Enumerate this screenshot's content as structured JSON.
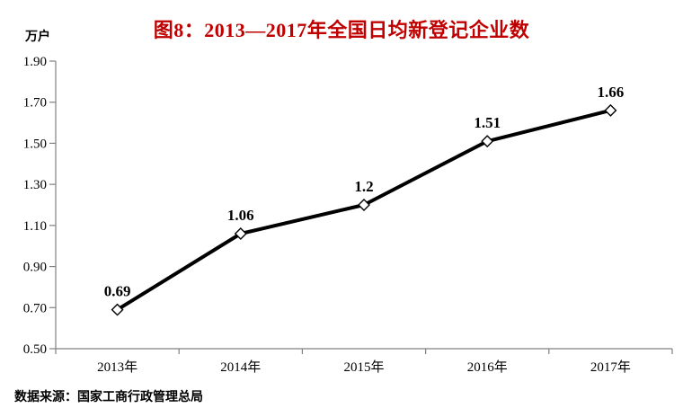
{
  "chart_data": {
    "type": "line",
    "title": "图8：2013—2017年全国日均新登记企业数",
    "title_color": "#c00000",
    "unit_label": "万户",
    "categories": [
      "2013年",
      "2014年",
      "2015年",
      "2016年",
      "2017年"
    ],
    "values": [
      0.69,
      1.06,
      1.2,
      1.51,
      1.66
    ],
    "data_labels": [
      "0.69",
      "1.06",
      "1.2",
      "1.51",
      "1.66"
    ],
    "y_tick_labels": [
      "0.50",
      "0.70",
      "0.90",
      "1.10",
      "1.30",
      "1.50",
      "1.70",
      "1.90"
    ],
    "ylim": [
      0.5,
      1.9
    ],
    "grid": false,
    "legend": "none",
    "line_color": "#000000",
    "marker_style": "diamond-white-black-outline",
    "axis_color": "#808080",
    "label_color": "#000000",
    "source": "数据来源：国家工商行政管理总局"
  }
}
